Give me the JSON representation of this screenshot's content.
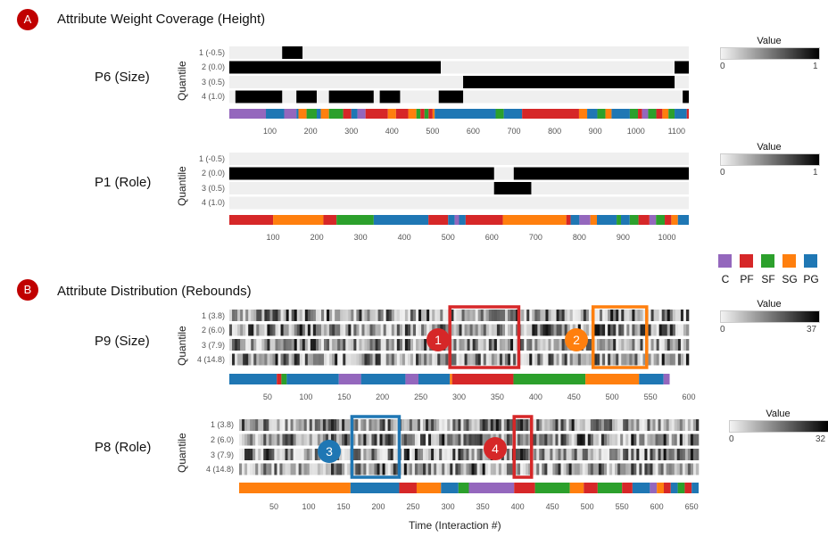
{
  "sections": {
    "A": {
      "badge": "A",
      "title": "Attribute Weight Coverage (Height)"
    },
    "B": {
      "badge": "B",
      "title": "Attribute Distribution (Rebounds)"
    }
  },
  "y_axis_label": "Quantile",
  "x_axis_title": "Time (Interaction #)",
  "legend_title": "Value",
  "role_legend": [
    {
      "label": "C",
      "color": "#9467bd"
    },
    {
      "label": "PF",
      "color": "#d62728"
    },
    {
      "label": "SF",
      "color": "#2ca02c"
    },
    {
      "label": "SG",
      "color": "#ff7f0e"
    },
    {
      "label": "PG",
      "color": "#1f77b4"
    }
  ],
  "colors": {
    "C": "#9467bd",
    "PF": "#d62728",
    "SF": "#2ca02c",
    "SG": "#ff7f0e",
    "PG": "#1f77b4"
  },
  "callouts": [
    {
      "label": "1",
      "color": "#d62728"
    },
    {
      "label": "2",
      "color": "#ff7f0e"
    },
    {
      "label": "3",
      "color": "#1f77b4"
    },
    {
      "label": "4",
      "color": "#d62728"
    }
  ],
  "chart_data": [
    {
      "type": "heatmap",
      "title": "P6 (Size)",
      "ylabel": "Quantile",
      "quantiles": [
        "1 (-0.5)",
        "2 (0.0)",
        "3 (0.5)",
        "4 (1.0)"
      ],
      "xlim": [
        0,
        1130
      ],
      "xticks": [
        100,
        200,
        300,
        400,
        500,
        600,
        700,
        800,
        900,
        1000,
        1100
      ],
      "value_range": [
        0,
        1
      ],
      "legend_min": "0",
      "legend_max": "1",
      "segments": [
        {
          "row": 0,
          "start": 130,
          "end": 180,
          "value": 1
        },
        {
          "row": 1,
          "start": 0,
          "end": 520,
          "value": 1
        },
        {
          "row": 1,
          "start": 1095,
          "end": 1130,
          "value": 1
        },
        {
          "row": 2,
          "start": 575,
          "end": 1095,
          "value": 1
        },
        {
          "row": 3,
          "start": 15,
          "end": 130,
          "value": 1
        },
        {
          "row": 3,
          "start": 165,
          "end": 215,
          "value": 1
        },
        {
          "row": 3,
          "start": 245,
          "end": 355,
          "value": 1
        },
        {
          "row": 3,
          "start": 370,
          "end": 420,
          "value": 1
        },
        {
          "row": 3,
          "start": 515,
          "end": 575,
          "value": 1
        },
        {
          "row": 3,
          "start": 1115,
          "end": 1130,
          "value": 1
        }
      ],
      "roles": [
        {
          "role": "C",
          "start": 0,
          "end": 90
        },
        {
          "role": "PG",
          "start": 90,
          "end": 135
        },
        {
          "role": "C",
          "start": 135,
          "end": 165
        },
        {
          "role": "PG",
          "start": 165,
          "end": 170
        },
        {
          "role": "SG",
          "start": 170,
          "end": 190
        },
        {
          "role": "SF",
          "start": 190,
          "end": 215
        },
        {
          "role": "PG",
          "start": 215,
          "end": 225
        },
        {
          "role": "SG",
          "start": 225,
          "end": 245
        },
        {
          "role": "SF",
          "start": 245,
          "end": 280
        },
        {
          "role": "PF",
          "start": 280,
          "end": 300
        },
        {
          "role": "PG",
          "start": 300,
          "end": 315
        },
        {
          "role": "C",
          "start": 315,
          "end": 335
        },
        {
          "role": "PF",
          "start": 335,
          "end": 390
        },
        {
          "role": "SG",
          "start": 390,
          "end": 410
        },
        {
          "role": "PF",
          "start": 410,
          "end": 440
        },
        {
          "role": "SG",
          "start": 440,
          "end": 460
        },
        {
          "role": "SF",
          "start": 460,
          "end": 470
        },
        {
          "role": "PF",
          "start": 470,
          "end": 480
        },
        {
          "role": "SF",
          "start": 480,
          "end": 490
        },
        {
          "role": "PF",
          "start": 490,
          "end": 500
        },
        {
          "role": "SG",
          "start": 500,
          "end": 505
        },
        {
          "role": "PG",
          "start": 505,
          "end": 655
        },
        {
          "role": "SF",
          "start": 655,
          "end": 675
        },
        {
          "role": "PG",
          "start": 675,
          "end": 720
        },
        {
          "role": "PF",
          "start": 720,
          "end": 860
        },
        {
          "role": "SG",
          "start": 860,
          "end": 880
        },
        {
          "role": "PG",
          "start": 880,
          "end": 905
        },
        {
          "role": "SF",
          "start": 905,
          "end": 925
        },
        {
          "role": "SG",
          "start": 925,
          "end": 940
        },
        {
          "role": "PG",
          "start": 940,
          "end": 985
        },
        {
          "role": "SF",
          "start": 985,
          "end": 1005
        },
        {
          "role": "PF",
          "start": 1005,
          "end": 1015
        },
        {
          "role": "C",
          "start": 1015,
          "end": 1030
        },
        {
          "role": "SF",
          "start": 1030,
          "end": 1050
        },
        {
          "role": "PF",
          "start": 1050,
          "end": 1065
        },
        {
          "role": "SG",
          "start": 1065,
          "end": 1080
        },
        {
          "role": "SF",
          "start": 1080,
          "end": 1095
        },
        {
          "role": "PG",
          "start": 1095,
          "end": 1125
        },
        {
          "role": "PF",
          "start": 1125,
          "end": 1130
        }
      ]
    },
    {
      "type": "heatmap",
      "title": "P1 (Role)",
      "ylabel": "Quantile",
      "quantiles": [
        "1 (-0.5)",
        "2 (0.0)",
        "3 (0.5)",
        "4 (1.0)"
      ],
      "xlim": [
        0,
        1050
      ],
      "xticks": [
        100,
        200,
        300,
        400,
        500,
        600,
        700,
        800,
        900,
        1000
      ],
      "value_range": [
        0,
        1
      ],
      "legend_min": "0",
      "legend_max": "1",
      "segments": [
        {
          "row": 1,
          "start": 0,
          "end": 605,
          "value": 1
        },
        {
          "row": 1,
          "start": 650,
          "end": 1050,
          "value": 1
        },
        {
          "row": 2,
          "start": 605,
          "end": 690,
          "value": 1
        }
      ],
      "roles": [
        {
          "role": "PF",
          "start": 0,
          "end": 100
        },
        {
          "role": "SG",
          "start": 100,
          "end": 215
        },
        {
          "role": "PF",
          "start": 215,
          "end": 245
        },
        {
          "role": "SF",
          "start": 245,
          "end": 330
        },
        {
          "role": "PG",
          "start": 330,
          "end": 455
        },
        {
          "role": "PF",
          "start": 455,
          "end": 500
        },
        {
          "role": "PG",
          "start": 500,
          "end": 515
        },
        {
          "role": "C",
          "start": 515,
          "end": 525
        },
        {
          "role": "PG",
          "start": 525,
          "end": 540
        },
        {
          "role": "PF",
          "start": 540,
          "end": 625
        },
        {
          "role": "SG",
          "start": 625,
          "end": 770
        },
        {
          "role": "PF",
          "start": 770,
          "end": 780
        },
        {
          "role": "PG",
          "start": 780,
          "end": 800
        },
        {
          "role": "C",
          "start": 800,
          "end": 825
        },
        {
          "role": "SG",
          "start": 825,
          "end": 840
        },
        {
          "role": "PG",
          "start": 840,
          "end": 885
        },
        {
          "role": "SF",
          "start": 885,
          "end": 895
        },
        {
          "role": "PG",
          "start": 895,
          "end": 915
        },
        {
          "role": "SF",
          "start": 915,
          "end": 935
        },
        {
          "role": "PF",
          "start": 935,
          "end": 960
        },
        {
          "role": "C",
          "start": 960,
          "end": 975
        },
        {
          "role": "SF",
          "start": 975,
          "end": 995
        },
        {
          "role": "PF",
          "start": 995,
          "end": 1010
        },
        {
          "role": "SG",
          "start": 1010,
          "end": 1025
        },
        {
          "role": "PG",
          "start": 1025,
          "end": 1050
        }
      ]
    },
    {
      "type": "heatmap",
      "title": "P9 (Size)",
      "ylabel": "Quantile",
      "quantiles": [
        "1 (3.8)",
        "2 (6.0)",
        "3 (7.9)",
        "4 (14.8)"
      ],
      "xlim": [
        0,
        600
      ],
      "xticks": [
        50,
        100,
        150,
        200,
        250,
        300,
        350,
        400,
        450,
        500,
        550,
        600
      ],
      "value_range": [
        0,
        37
      ],
      "legend_min": "0",
      "legend_max": "37",
      "seed": 9,
      "roles": [
        {
          "role": "PG",
          "start": 0,
          "end": 62
        },
        {
          "role": "PF",
          "start": 62,
          "end": 68
        },
        {
          "role": "SF",
          "start": 68,
          "end": 75
        },
        {
          "role": "PG",
          "start": 75,
          "end": 143
        },
        {
          "role": "C",
          "start": 143,
          "end": 172
        },
        {
          "role": "PG",
          "start": 172,
          "end": 230
        },
        {
          "role": "C",
          "start": 230,
          "end": 247
        },
        {
          "role": "PG",
          "start": 247,
          "end": 288
        },
        {
          "role": "SG",
          "start": 288,
          "end": 291
        },
        {
          "role": "PF",
          "start": 291,
          "end": 371
        },
        {
          "role": "SF",
          "start": 371,
          "end": 465
        },
        {
          "role": "SG",
          "start": 465,
          "end": 535
        },
        {
          "role": "PG",
          "start": 535,
          "end": 567
        },
        {
          "role": "C",
          "start": 567,
          "end": 575
        }
      ],
      "highlights": [
        {
          "label": "1",
          "color": "#d62728",
          "start": 288,
          "end": 378
        },
        {
          "label": "2",
          "color": "#ff7f0e",
          "start": 475,
          "end": 545
        }
      ]
    },
    {
      "type": "heatmap",
      "title": "P8 (Role)",
      "ylabel": "Quantile",
      "quantiles": [
        "1 (3.8)",
        "2 (6.0)",
        "3 (7.9)",
        "4 (14.8)"
      ],
      "xlim": [
        0,
        660
      ],
      "xticks": [
        50,
        100,
        150,
        200,
        250,
        300,
        350,
        400,
        450,
        500,
        550,
        600,
        650
      ],
      "value_range": [
        0,
        32
      ],
      "legend_min": "0",
      "legend_max": "32",
      "seed": 8,
      "roles": [
        {
          "role": "SG",
          "start": 0,
          "end": 160
        },
        {
          "role": "PG",
          "start": 160,
          "end": 230
        },
        {
          "role": "PF",
          "start": 230,
          "end": 255
        },
        {
          "role": "SG",
          "start": 255,
          "end": 290
        },
        {
          "role": "PG",
          "start": 290,
          "end": 315
        },
        {
          "role": "SF",
          "start": 315,
          "end": 330
        },
        {
          "role": "C",
          "start": 330,
          "end": 395
        },
        {
          "role": "PF",
          "start": 395,
          "end": 425
        },
        {
          "role": "SF",
          "start": 425,
          "end": 475
        },
        {
          "role": "SG",
          "start": 475,
          "end": 495
        },
        {
          "role": "PF",
          "start": 495,
          "end": 515
        },
        {
          "role": "SF",
          "start": 515,
          "end": 550
        },
        {
          "role": "PF",
          "start": 550,
          "end": 565
        },
        {
          "role": "PG",
          "start": 565,
          "end": 590
        },
        {
          "role": "C",
          "start": 590,
          "end": 600
        },
        {
          "role": "SG",
          "start": 600,
          "end": 610
        },
        {
          "role": "PF",
          "start": 610,
          "end": 620
        },
        {
          "role": "PG",
          "start": 620,
          "end": 630
        },
        {
          "role": "SF",
          "start": 630,
          "end": 640
        },
        {
          "role": "PF",
          "start": 640,
          "end": 650
        },
        {
          "role": "PG",
          "start": 650,
          "end": 660
        }
      ],
      "highlights": [
        {
          "label": "3",
          "color": "#1f77b4",
          "start": 162,
          "end": 230
        },
        {
          "label": "4",
          "color": "#d62728",
          "start": 395,
          "end": 420
        }
      ]
    }
  ]
}
